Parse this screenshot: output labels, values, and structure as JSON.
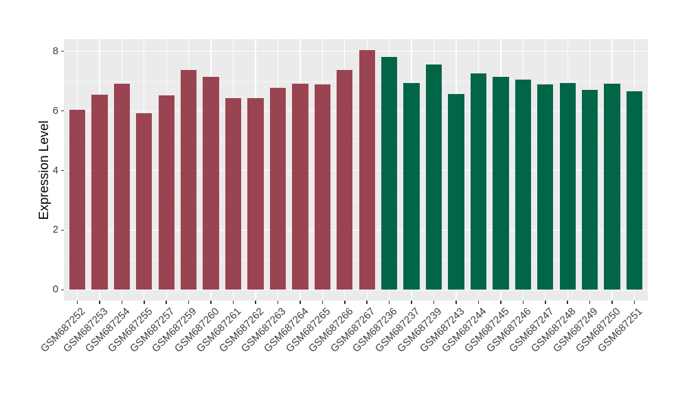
{
  "figure": {
    "background": "#ffffff",
    "panel_background": "#ebebeb",
    "grid_color": "#ffffff",
    "axis_text_color": "#3c3c3c",
    "tick_color": "#333333"
  },
  "chart_data": {
    "type": "bar",
    "title": "",
    "xlabel": "",
    "ylabel": "Expression Level",
    "ylim": [
      -0.37,
      8.41
    ],
    "yticks": [
      0,
      2,
      4,
      6,
      8
    ],
    "yticks_minor": [
      1,
      3,
      5,
      7
    ],
    "grid": true,
    "legend_position": "none",
    "x_label_angle": 45,
    "groups": [
      {
        "name": "group-maroon",
        "color": "#9a4351"
      },
      {
        "name": "group-green",
        "color": "#016648"
      }
    ],
    "bars": [
      {
        "label": "GSM687252",
        "value": 6.04,
        "group": 0
      },
      {
        "label": "GSM687253",
        "value": 6.54,
        "group": 0
      },
      {
        "label": "GSM687254",
        "value": 6.9,
        "group": 0
      },
      {
        "label": "GSM687255",
        "value": 5.92,
        "group": 0
      },
      {
        "label": "GSM687257",
        "value": 6.52,
        "group": 0
      },
      {
        "label": "GSM687259",
        "value": 7.38,
        "group": 0
      },
      {
        "label": "GSM687260",
        "value": 7.15,
        "group": 0
      },
      {
        "label": "GSM687261",
        "value": 6.42,
        "group": 0
      },
      {
        "label": "GSM687262",
        "value": 6.42,
        "group": 0
      },
      {
        "label": "GSM687263",
        "value": 6.78,
        "group": 0
      },
      {
        "label": "GSM687264",
        "value": 6.92,
        "group": 0
      },
      {
        "label": "GSM687265",
        "value": 6.88,
        "group": 0
      },
      {
        "label": "GSM687266",
        "value": 7.38,
        "group": 0
      },
      {
        "label": "GSM687267",
        "value": 8.03,
        "group": 0
      },
      {
        "label": "GSM687236",
        "value": 7.81,
        "group": 1
      },
      {
        "label": "GSM687237",
        "value": 6.94,
        "group": 1
      },
      {
        "label": "GSM687239",
        "value": 7.56,
        "group": 1
      },
      {
        "label": "GSM687243",
        "value": 6.57,
        "group": 1
      },
      {
        "label": "GSM687244",
        "value": 7.25,
        "group": 1
      },
      {
        "label": "GSM687245",
        "value": 7.15,
        "group": 1
      },
      {
        "label": "GSM687246",
        "value": 7.05,
        "group": 1
      },
      {
        "label": "GSM687247",
        "value": 6.89,
        "group": 1
      },
      {
        "label": "GSM687248",
        "value": 6.93,
        "group": 1
      },
      {
        "label": "GSM687249",
        "value": 6.71,
        "group": 1
      },
      {
        "label": "GSM687250",
        "value": 6.92,
        "group": 1
      },
      {
        "label": "GSM687251",
        "value": 6.65,
        "group": 1
      }
    ]
  }
}
